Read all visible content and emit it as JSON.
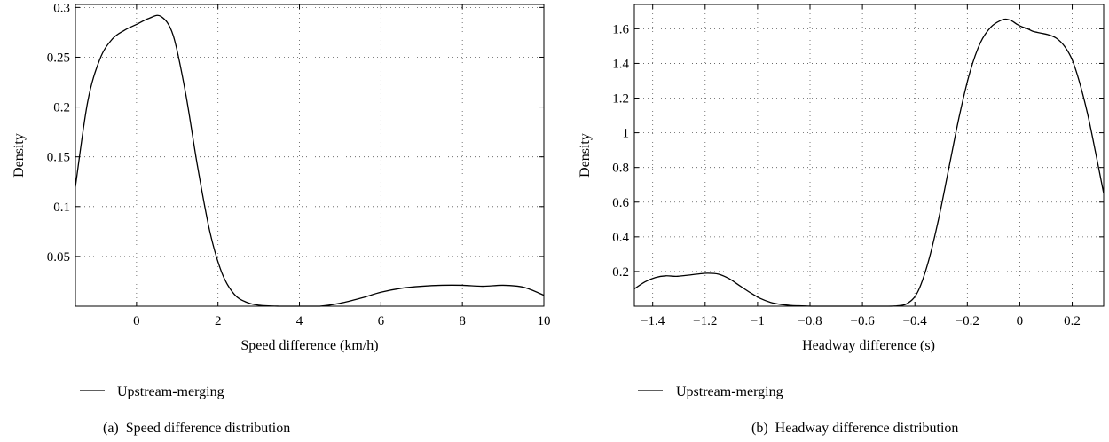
{
  "chart_data": [
    {
      "type": "line",
      "caption": "(a)  Speed difference distribution",
      "xlabel": "Speed difference (km/h)",
      "ylabel": "Density",
      "xlim": [
        -1.5,
        10
      ],
      "ylim": [
        0,
        0.303
      ],
      "xticks": [
        0,
        2,
        4,
        6,
        8,
        10
      ],
      "xtick_labels": [
        "0",
        "2",
        "4",
        "6",
        "8",
        "10"
      ],
      "yticks": [
        0.05,
        0.1,
        0.15,
        0.2,
        0.25,
        0.3
      ],
      "ytick_labels": [
        "0.05",
        "0.1",
        "0.15",
        "0.2",
        "0.25",
        "0.3"
      ],
      "grid": true,
      "legend_position": "bottom-left",
      "series": [
        {
          "name": "Upstream-merging",
          "color": "#000000",
          "x": [
            -1.5,
            -1.2,
            -0.9,
            -0.6,
            -0.3,
            0.0,
            0.3,
            0.6,
            0.9,
            1.2,
            1.5,
            1.8,
            2.1,
            2.4,
            2.7,
            3.0,
            3.5,
            4.0,
            4.5,
            5.0,
            5.5,
            6.0,
            6.5,
            7.0,
            7.5,
            8.0,
            8.5,
            9.0,
            9.5,
            10.0
          ],
          "y": [
            0.12,
            0.205,
            0.248,
            0.268,
            0.277,
            0.283,
            0.289,
            0.291,
            0.272,
            0.215,
            0.14,
            0.075,
            0.033,
            0.012,
            0.004,
            0.001,
            0.0,
            0.0,
            0.0,
            0.003,
            0.008,
            0.014,
            0.018,
            0.02,
            0.021,
            0.021,
            0.02,
            0.021,
            0.019,
            0.011
          ]
        }
      ]
    },
    {
      "type": "line",
      "caption": "(b)  Headway difference distribution",
      "xlabel": "Headway difference (s)",
      "ylabel": "Density",
      "xlim": [
        -1.47,
        0.32
      ],
      "ylim": [
        0,
        1.74
      ],
      "xticks": [
        -1.4,
        -1.2,
        -1.0,
        -0.8,
        -0.6,
        -0.4,
        -0.2,
        0.0,
        0.2
      ],
      "xtick_labels": [
        "−1.4",
        "−1.2",
        "−1",
        "−0.8",
        "−0.6",
        "−0.4",
        "−0.2",
        "0",
        "0.2"
      ],
      "yticks": [
        0.2,
        0.4,
        0.6,
        0.8,
        1.0,
        1.2,
        1.4,
        1.6
      ],
      "ytick_labels": [
        "0.2",
        "0.4",
        "0.6",
        "0.8",
        "1",
        "1.2",
        "1.4",
        "1.6"
      ],
      "grid": true,
      "legend_position": "bottom-left",
      "series": [
        {
          "name": "Upstream-merging",
          "color": "#000000",
          "x": [
            -1.47,
            -1.43,
            -1.39,
            -1.35,
            -1.31,
            -1.27,
            -1.23,
            -1.19,
            -1.15,
            -1.11,
            -1.07,
            -1.03,
            -0.99,
            -0.95,
            -0.91,
            -0.87,
            -0.83,
            -0.79,
            -0.75,
            -0.71,
            -0.67,
            -0.63,
            -0.59,
            -0.55,
            -0.51,
            -0.47,
            -0.43,
            -0.39,
            -0.35,
            -0.31,
            -0.27,
            -0.23,
            -0.19,
            -0.15,
            -0.11,
            -0.07,
            -0.05,
            -0.03,
            -0.01,
            0.01,
            0.03,
            0.05,
            0.08,
            0.11,
            0.14,
            0.17,
            0.2,
            0.23,
            0.26,
            0.29,
            0.32
          ],
          "y": [
            0.1,
            0.14,
            0.165,
            0.175,
            0.172,
            0.178,
            0.185,
            0.19,
            0.185,
            0.16,
            0.12,
            0.08,
            0.045,
            0.022,
            0.01,
            0.004,
            0.002,
            0.0,
            0.0,
            0.0,
            0.0,
            0.0,
            0.0,
            0.0,
            0.0,
            0.002,
            0.015,
            0.08,
            0.25,
            0.5,
            0.8,
            1.1,
            1.35,
            1.52,
            1.61,
            1.65,
            1.655,
            1.645,
            1.625,
            1.61,
            1.6,
            1.585,
            1.575,
            1.565,
            1.545,
            1.5,
            1.42,
            1.28,
            1.1,
            0.88,
            0.65
          ]
        }
      ]
    }
  ]
}
